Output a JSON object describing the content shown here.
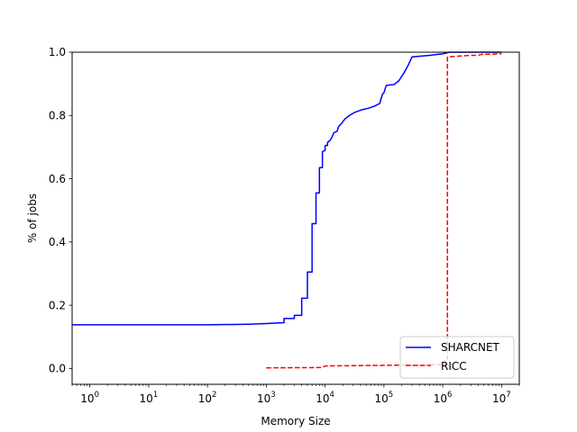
{
  "chart_data": {
    "type": "line",
    "title": "",
    "xlabel": "Memory Size",
    "ylabel": "% of jobs",
    "xscale": "log",
    "xlim": [
      0.5,
      20000000
    ],
    "ylim": [
      -0.05,
      1.0
    ],
    "grid": false,
    "legend": {
      "placement": "lower-right"
    },
    "x_ticks": [
      {
        "value": 1,
        "base": "10",
        "exp": "0"
      },
      {
        "value": 10,
        "base": "10",
        "exp": "1"
      },
      {
        "value": 100,
        "base": "10",
        "exp": "2"
      },
      {
        "value": 1000,
        "base": "10",
        "exp": "3"
      },
      {
        "value": 10000,
        "base": "10",
        "exp": "4"
      },
      {
        "value": 100000,
        "base": "10",
        "exp": "5"
      },
      {
        "value": 1000000,
        "base": "10",
        "exp": "6"
      },
      {
        "value": 10000000,
        "base": "10",
        "exp": "7"
      }
    ],
    "y_ticks": [
      {
        "value": 0.0,
        "label": "0.0"
      },
      {
        "value": 0.2,
        "label": "0.2"
      },
      {
        "value": 0.4,
        "label": "0.4"
      },
      {
        "value": 0.6,
        "label": "0.6"
      },
      {
        "value": 0.8,
        "label": "0.8"
      },
      {
        "value": 1.0,
        "label": "1.0"
      }
    ],
    "series": [
      {
        "name": "SHARCNET",
        "color": "#0000ff",
        "style": "solid",
        "points": [
          [
            0.5,
            0.138
          ],
          [
            100,
            0.138
          ],
          [
            500,
            0.14
          ],
          [
            1000,
            0.142
          ],
          [
            2000,
            0.145
          ],
          [
            2000,
            0.158
          ],
          [
            3000,
            0.158
          ],
          [
            3000,
            0.168
          ],
          [
            4000,
            0.168
          ],
          [
            4000,
            0.222
          ],
          [
            5000,
            0.222
          ],
          [
            5000,
            0.305
          ],
          [
            6000,
            0.305
          ],
          [
            6000,
            0.458
          ],
          [
            7000,
            0.458
          ],
          [
            7000,
            0.555
          ],
          [
            8000,
            0.555
          ],
          [
            8000,
            0.635
          ],
          [
            9000,
            0.635
          ],
          [
            9000,
            0.685
          ],
          [
            10000,
            0.69
          ],
          [
            10000,
            0.705
          ],
          [
            11000,
            0.705
          ],
          [
            11000,
            0.715
          ],
          [
            12000,
            0.72
          ],
          [
            13000,
            0.73
          ],
          [
            14000,
            0.745
          ],
          [
            16000,
            0.75
          ],
          [
            17000,
            0.765
          ],
          [
            19000,
            0.775
          ],
          [
            22000,
            0.79
          ],
          [
            26000,
            0.8
          ],
          [
            32000,
            0.81
          ],
          [
            42000,
            0.818
          ],
          [
            55000,
            0.823
          ],
          [
            70000,
            0.83
          ],
          [
            85000,
            0.838
          ],
          [
            90000,
            0.855
          ],
          [
            95000,
            0.868
          ],
          [
            100000,
            0.872
          ],
          [
            105000,
            0.885
          ],
          [
            110000,
            0.895
          ],
          [
            150000,
            0.898
          ],
          [
            180000,
            0.91
          ],
          [
            220000,
            0.935
          ],
          [
            260000,
            0.96
          ],
          [
            300000,
            0.985
          ],
          [
            600000,
            0.99
          ],
          [
            1000000,
            0.995
          ],
          [
            1300000,
            1.0
          ],
          [
            10000000,
            1.0
          ]
        ]
      },
      {
        "name": "RICC",
        "color": "#ff0000",
        "style": "dashed",
        "points": [
          [
            1000,
            0.002
          ],
          [
            9000,
            0.003
          ],
          [
            10000,
            0.008
          ],
          [
            100000,
            0.01
          ],
          [
            1000000,
            0.012
          ],
          [
            1200000,
            0.015
          ],
          [
            1200000,
            0.985
          ],
          [
            2000000,
            0.988
          ],
          [
            3000000,
            0.99
          ],
          [
            4000000,
            0.99
          ],
          [
            4500000,
            0.993
          ],
          [
            10000000,
            0.995
          ]
        ]
      }
    ]
  }
}
